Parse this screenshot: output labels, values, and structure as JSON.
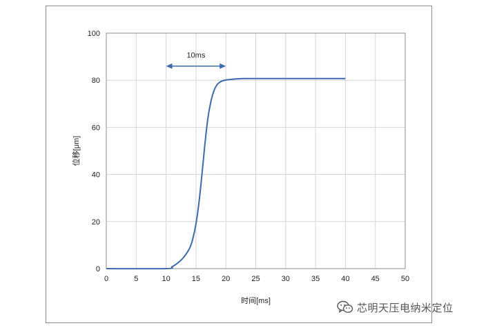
{
  "chart_data": {
    "type": "line",
    "title": "",
    "xlabel": "时间[ms]",
    "ylabel": "位移[μm]",
    "xlim": [
      0,
      50
    ],
    "ylim": [
      0,
      100
    ],
    "xticks": [
      0,
      5,
      10,
      15,
      20,
      25,
      30,
      35,
      40,
      45,
      50
    ],
    "yticks": [
      0,
      20,
      40,
      60,
      80,
      100
    ],
    "grid": true,
    "series": [
      {
        "color": "#3b6ab3",
        "x": [
          0,
          10,
          11,
          12,
          13,
          14,
          14.5,
          15,
          15.5,
          16,
          16.5,
          17,
          17.5,
          18,
          18.5,
          19,
          19.5,
          20,
          21,
          22,
          23,
          25,
          30,
          35,
          40
        ],
        "y": [
          0,
          0,
          0.8,
          2.5,
          5,
          9,
          13,
          19,
          28,
          40,
          53,
          64,
          71,
          75.5,
          78,
          79.2,
          79.8,
          80.1,
          80.4,
          80.6,
          80.7,
          80.7,
          80.7,
          80.7,
          80.7
        ]
      }
    ],
    "annotation": {
      "label": "10ms",
      "x_from": 10,
      "x_to": 20,
      "y": 86,
      "color": "#3b6ab3"
    }
  },
  "watermark": {
    "text": "芯明天压电纳米定位",
    "icon": "wechat-icon"
  }
}
